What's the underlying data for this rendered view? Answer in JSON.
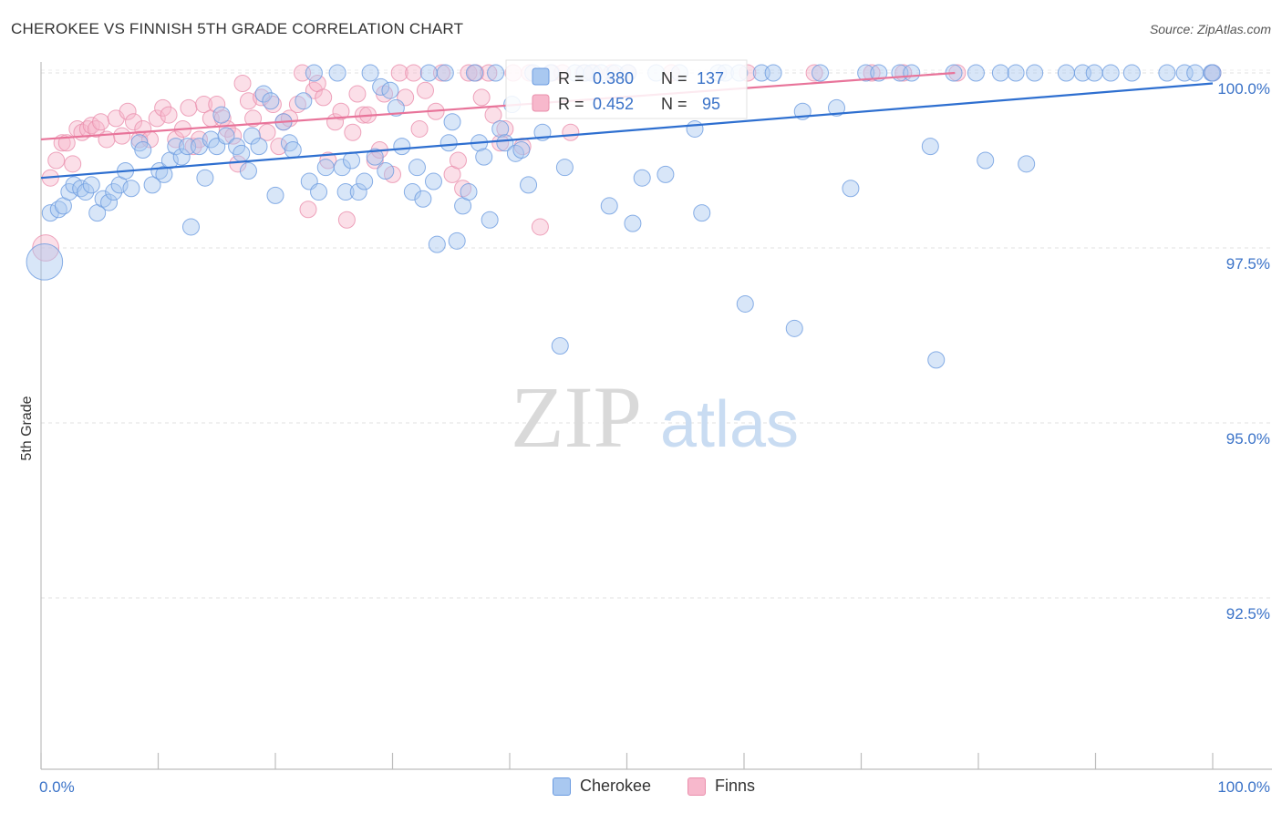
{
  "header": {
    "title": "CHEROKEE VS FINNISH 5TH GRADE CORRELATION CHART",
    "source": "Source: ZipAtlas.com"
  },
  "watermark": {
    "zip": "ZIP",
    "atlas": "atlas"
  },
  "legend_top": {
    "rows": [
      {
        "r_label": "R =",
        "r_value": "0.380",
        "n_label": "N =",
        "n_value": "137"
      },
      {
        "r_label": "R =",
        "r_value": "0.452",
        "n_label": "N =",
        "n_value": "95"
      }
    ]
  },
  "legend_bottom": {
    "cherokee": "Cherokee",
    "finns": "Finns"
  },
  "chart_data": {
    "type": "scatter",
    "title": "CHEROKEE VS FINNISH 5TH GRADE CORRELATION CHART",
    "xlabel": "",
    "ylabel": "5th Grade",
    "xlim": [
      0,
      100
    ],
    "ylim": [
      90.2,
      100.4
    ],
    "x_tick_labels": [
      "0.0%",
      "100.0%"
    ],
    "y_ticks": [
      100.0,
      97.5,
      95.0,
      92.5
    ],
    "y_tick_labels": [
      "100.0%",
      "97.5%",
      "95.0%",
      "92.5%"
    ],
    "grid": true,
    "legend_position": "top-center",
    "colors": {
      "cherokee_fill": "#a9c8f0",
      "cherokee_stroke": "#6b9be0",
      "cherokee_line": "#2e6fd0",
      "finns_fill": "#f7b8cc",
      "finns_stroke": "#ea8fac",
      "finns_line": "#e8749a",
      "tick_label": "#3b73c8"
    },
    "series": [
      {
        "name": "Cherokee",
        "r": 0.38,
        "n": 137,
        "trend": {
          "x": [
            0,
            100
          ],
          "y": [
            98.5,
            99.85
          ]
        },
        "points": [
          [
            0.3,
            97.3,
            2.2
          ],
          [
            0.8,
            98.0,
            1
          ],
          [
            1.5,
            98.05,
            1
          ],
          [
            1.9,
            98.1,
            1
          ],
          [
            2.4,
            98.3,
            1
          ],
          [
            2.8,
            98.4,
            1
          ],
          [
            3.4,
            98.35,
            1
          ],
          [
            3.8,
            98.3,
            1
          ],
          [
            4.3,
            98.4,
            1
          ],
          [
            4.8,
            98.0,
            1
          ],
          [
            5.3,
            98.2,
            1
          ],
          [
            5.8,
            98.15,
            1
          ],
          [
            6.2,
            98.3,
            1
          ],
          [
            6.7,
            98.4,
            1
          ],
          [
            7.2,
            98.6,
            1
          ],
          [
            7.7,
            98.35,
            1
          ],
          [
            8.4,
            99.0,
            1
          ],
          [
            8.7,
            98.9,
            1
          ],
          [
            9.5,
            98.4,
            1
          ],
          [
            10.1,
            98.6,
            1
          ],
          [
            10.5,
            98.55,
            1
          ],
          [
            11.0,
            98.75,
            1
          ],
          [
            11.5,
            98.95,
            1
          ],
          [
            12.0,
            98.8,
            1
          ],
          [
            12.5,
            98.95,
            1
          ],
          [
            12.8,
            97.8,
            1
          ],
          [
            13.5,
            98.95,
            1
          ],
          [
            14.0,
            98.5,
            1
          ],
          [
            14.5,
            99.05,
            1
          ],
          [
            15.0,
            98.95,
            1
          ],
          [
            15.4,
            99.4,
            1
          ],
          [
            15.8,
            99.1,
            1
          ],
          [
            16.7,
            98.95,
            1
          ],
          [
            17.1,
            98.85,
            1
          ],
          [
            17.7,
            98.6,
            1
          ],
          [
            18.0,
            99.1,
            1
          ],
          [
            18.6,
            98.95,
            1
          ],
          [
            19.0,
            99.7,
            1
          ],
          [
            19.6,
            99.6,
            1
          ],
          [
            20.0,
            98.25,
            1
          ],
          [
            20.7,
            99.3,
            1
          ],
          [
            21.2,
            99.0,
            1
          ],
          [
            21.5,
            98.9,
            1
          ],
          [
            22.4,
            99.6,
            1
          ],
          [
            22.9,
            98.45,
            1
          ],
          [
            23.3,
            100.0,
            1
          ],
          [
            23.7,
            98.3,
            1
          ],
          [
            24.3,
            98.65,
            1
          ],
          [
            25.3,
            100.0,
            1
          ],
          [
            25.7,
            98.65,
            1
          ],
          [
            26.0,
            98.3,
            1
          ],
          [
            26.5,
            98.75,
            1
          ],
          [
            27.1,
            98.3,
            1
          ],
          [
            27.6,
            98.45,
            1
          ],
          [
            28.1,
            100.0,
            1
          ],
          [
            28.5,
            98.8,
            1
          ],
          [
            29.0,
            99.8,
            1
          ],
          [
            29.4,
            98.6,
            1
          ],
          [
            29.8,
            99.75,
            1
          ],
          [
            30.3,
            99.5,
            1
          ],
          [
            30.8,
            98.95,
            1
          ],
          [
            31.7,
            98.3,
            1
          ],
          [
            32.1,
            98.65,
            1
          ],
          [
            32.6,
            98.2,
            1
          ],
          [
            33.1,
            100.0,
            1
          ],
          [
            33.5,
            98.45,
            1
          ],
          [
            33.8,
            97.55,
            1
          ],
          [
            34.5,
            100.0,
            1
          ],
          [
            34.8,
            99.0,
            1
          ],
          [
            35.1,
            99.3,
            1
          ],
          [
            35.5,
            97.6,
            1
          ],
          [
            36.0,
            98.1,
            1
          ],
          [
            36.5,
            98.3,
            1
          ],
          [
            37.0,
            100.0,
            1
          ],
          [
            37.4,
            99.0,
            1
          ],
          [
            37.8,
            98.8,
            1
          ],
          [
            38.3,
            97.9,
            1
          ],
          [
            38.8,
            100.0,
            1
          ],
          [
            39.2,
            99.2,
            1
          ],
          [
            39.6,
            99.0,
            1
          ],
          [
            40.2,
            99.55,
            1
          ],
          [
            40.5,
            98.85,
            1
          ],
          [
            41.0,
            98.9,
            1
          ],
          [
            41.6,
            98.4,
            1
          ],
          [
            42.0,
            100.0,
            1
          ],
          [
            42.8,
            99.15,
            1
          ],
          [
            43.5,
            100.0,
            1
          ],
          [
            44.3,
            96.1,
            1
          ],
          [
            44.7,
            98.65,
            1
          ],
          [
            45.6,
            100.0,
            1
          ],
          [
            46.4,
            100.0,
            1
          ],
          [
            47.0,
            100.0,
            1
          ],
          [
            47.8,
            100.0,
            1
          ],
          [
            48.5,
            98.1,
            1
          ],
          [
            49.0,
            100.0,
            1
          ],
          [
            50.1,
            100.0,
            1
          ],
          [
            50.5,
            97.85,
            1
          ],
          [
            51.3,
            98.5,
            1
          ],
          [
            52.5,
            100.0,
            1
          ],
          [
            53.3,
            98.55,
            1
          ],
          [
            54.5,
            100.0,
            1
          ],
          [
            55.8,
            99.2,
            1
          ],
          [
            56.4,
            98.0,
            1
          ],
          [
            57.8,
            100.0,
            1
          ],
          [
            58.4,
            100.0,
            1
          ],
          [
            59.6,
            100.0,
            1
          ],
          [
            60.1,
            96.7,
            1
          ],
          [
            61.5,
            100.0,
            1
          ],
          [
            62.5,
            100.0,
            1
          ],
          [
            64.3,
            96.35,
            1
          ],
          [
            65.0,
            99.45,
            1
          ],
          [
            66.5,
            100.0,
            1
          ],
          [
            67.9,
            99.5,
            1
          ],
          [
            69.1,
            98.35,
            1
          ],
          [
            70.4,
            100.0,
            1
          ],
          [
            71.5,
            100.0,
            1
          ],
          [
            73.3,
            100.0,
            1
          ],
          [
            74.3,
            100.0,
            1
          ],
          [
            75.9,
            98.95,
            1
          ],
          [
            76.4,
            95.9,
            1
          ],
          [
            77.9,
            100.0,
            1
          ],
          [
            79.8,
            100.0,
            1
          ],
          [
            80.6,
            98.75,
            1
          ],
          [
            81.9,
            100.0,
            1
          ],
          [
            83.2,
            100.0,
            1
          ],
          [
            84.1,
            98.7,
            1
          ],
          [
            84.8,
            100.0,
            1
          ],
          [
            87.5,
            100.0,
            1
          ],
          [
            88.9,
            100.0,
            1
          ],
          [
            89.9,
            100.0,
            1
          ],
          [
            91.3,
            100.0,
            1
          ],
          [
            93.1,
            100.0,
            1
          ],
          [
            96.1,
            100.0,
            1
          ],
          [
            97.6,
            100.0,
            1
          ],
          [
            98.5,
            100.0,
            1
          ],
          [
            99.9,
            100.0,
            1
          ],
          [
            100.0,
            100.0,
            1
          ]
        ]
      },
      {
        "name": "Finns",
        "r": 0.452,
        "n": 95,
        "trend": {
          "x": [
            0,
            78
          ],
          "y": [
            99.05,
            100.0
          ]
        },
        "points": [
          [
            0.4,
            97.5,
            1.6
          ],
          [
            0.8,
            98.5,
            1
          ],
          [
            1.3,
            98.75,
            1
          ],
          [
            1.8,
            99.0,
            1
          ],
          [
            2.2,
            99.0,
            1
          ],
          [
            2.7,
            98.7,
            1
          ],
          [
            3.1,
            99.2,
            1
          ],
          [
            3.5,
            99.15,
            1
          ],
          [
            4.0,
            99.2,
            1
          ],
          [
            4.3,
            99.25,
            1
          ],
          [
            4.7,
            99.2,
            1
          ],
          [
            5.1,
            99.3,
            1
          ],
          [
            5.6,
            99.05,
            1
          ],
          [
            6.4,
            99.35,
            1
          ],
          [
            6.9,
            99.1,
            1
          ],
          [
            7.4,
            99.45,
            1
          ],
          [
            7.9,
            99.3,
            1
          ],
          [
            8.4,
            99.05,
            1
          ],
          [
            8.7,
            99.2,
            1
          ],
          [
            9.3,
            99.05,
            1
          ],
          [
            9.9,
            99.35,
            1
          ],
          [
            10.4,
            99.5,
            1
          ],
          [
            10.9,
            99.4,
            1
          ],
          [
            11.5,
            99.05,
            1
          ],
          [
            12.1,
            99.2,
            1
          ],
          [
            12.6,
            99.5,
            1
          ],
          [
            13.0,
            98.95,
            1
          ],
          [
            13.5,
            99.05,
            1
          ],
          [
            13.9,
            99.55,
            1
          ],
          [
            14.5,
            99.35,
            1
          ],
          [
            15.0,
            99.55,
            1
          ],
          [
            15.5,
            99.35,
            1
          ],
          [
            15.9,
            99.2,
            1
          ],
          [
            16.4,
            99.1,
            1
          ],
          [
            16.8,
            98.7,
            1
          ],
          [
            17.2,
            99.85,
            1
          ],
          [
            17.7,
            99.6,
            1
          ],
          [
            18.1,
            99.35,
            1
          ],
          [
            18.8,
            99.65,
            1
          ],
          [
            19.3,
            99.15,
            1
          ],
          [
            19.8,
            99.55,
            1
          ],
          [
            20.3,
            98.95,
            1
          ],
          [
            20.7,
            99.3,
            1
          ],
          [
            21.2,
            99.35,
            1
          ],
          [
            21.9,
            99.55,
            1
          ],
          [
            22.3,
            100.0,
            1
          ],
          [
            22.8,
            98.05,
            1
          ],
          [
            23.3,
            99.75,
            1
          ],
          [
            23.6,
            99.85,
            1
          ],
          [
            24.1,
            99.65,
            1
          ],
          [
            24.5,
            98.75,
            1
          ],
          [
            25.1,
            99.3,
            1
          ],
          [
            25.6,
            99.45,
            1
          ],
          [
            26.1,
            97.9,
            1
          ],
          [
            26.6,
            99.15,
            1
          ],
          [
            27.0,
            99.7,
            1
          ],
          [
            27.5,
            99.4,
            1
          ],
          [
            27.9,
            99.4,
            1
          ],
          [
            28.5,
            98.75,
            1
          ],
          [
            28.9,
            98.9,
            1
          ],
          [
            29.3,
            99.7,
            1
          ],
          [
            30.0,
            98.55,
            1
          ],
          [
            30.6,
            100.0,
            1
          ],
          [
            31.1,
            99.65,
            1
          ],
          [
            31.8,
            100.0,
            1
          ],
          [
            32.3,
            99.2,
            1
          ],
          [
            32.8,
            99.75,
            1
          ],
          [
            33.7,
            99.45,
            1
          ],
          [
            34.2,
            100.0,
            1
          ],
          [
            35.1,
            98.55,
            1
          ],
          [
            35.6,
            98.75,
            1
          ],
          [
            36.0,
            98.35,
            1
          ],
          [
            36.5,
            100.0,
            1
          ],
          [
            37.1,
            100.0,
            1
          ],
          [
            37.6,
            99.65,
            1
          ],
          [
            38.2,
            100.0,
            1
          ],
          [
            38.6,
            99.4,
            1
          ],
          [
            39.2,
            99.0,
            1
          ],
          [
            39.6,
            99.2,
            1
          ],
          [
            40.3,
            100.0,
            1
          ],
          [
            41.1,
            98.95,
            1
          ],
          [
            41.7,
            100.0,
            1
          ],
          [
            42.6,
            97.8,
            1
          ],
          [
            43.6,
            100.0,
            1
          ],
          [
            44.5,
            100.0,
            1
          ],
          [
            45.2,
            99.15,
            1
          ],
          [
            46.3,
            100.0,
            1
          ],
          [
            47.2,
            100.0,
            1
          ],
          [
            48.7,
            100.0,
            1
          ],
          [
            50.1,
            100.0,
            1
          ],
          [
            53.8,
            100.0,
            1
          ],
          [
            60.3,
            100.0,
            1
          ],
          [
            66.0,
            100.0,
            1
          ],
          [
            70.9,
            100.0,
            1
          ],
          [
            73.6,
            100.0,
            1
          ],
          [
            78.2,
            100.0,
            1
          ],
          [
            100.0,
            100.0,
            1
          ]
        ]
      }
    ]
  }
}
